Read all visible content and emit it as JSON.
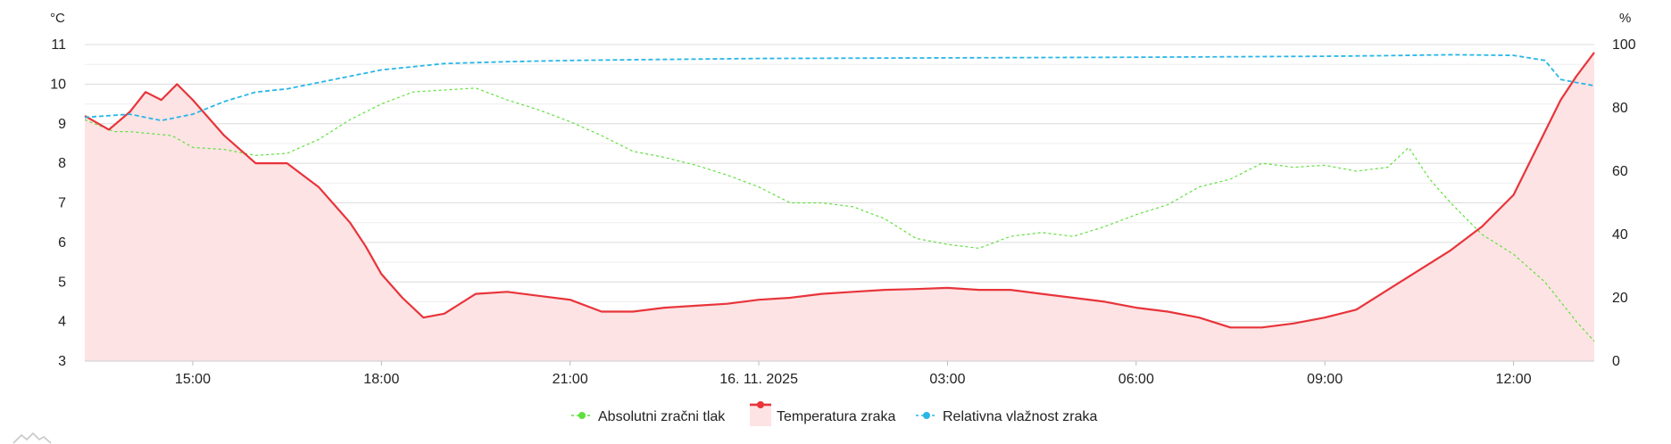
{
  "chart_data": {
    "type": "line",
    "title": "",
    "y_left_unit": "°C",
    "y_right_unit": "%",
    "y_left_range": [
      3,
      11
    ],
    "y_right_range": [
      0,
      100
    ],
    "y_left_ticks": [
      "3",
      "4",
      "5",
      "6",
      "7",
      "8",
      "9",
      "10",
      "11"
    ],
    "y_right_ticks": [
      "0",
      "20",
      "40",
      "60",
      "80",
      "100"
    ],
    "x_start": "2025-11-15 13:17",
    "x_end": "2025-11-16 13:17",
    "x_ticks": [
      "15:00",
      "18:00",
      "21:00",
      "16. 11. 2025",
      "03:00",
      "06:00",
      "09:00",
      "12:00"
    ],
    "grid": true,
    "legend_position": "bottom-center",
    "series": [
      {
        "name": "Absolutni zračni tlak",
        "color": "#5ee03c",
        "style": "dashed",
        "axis": "left",
        "x": [
          "15.11. 13:17",
          "13:45",
          "14:00",
          "14:40",
          "15:00",
          "15:30",
          "16:00",
          "16:30",
          "17:00",
          "17:30",
          "18:00",
          "18:30",
          "19:00",
          "19:30",
          "20:00",
          "20:30",
          "21:00",
          "21:30",
          "22:00",
          "22:30",
          "23:00",
          "23:30",
          "00:00",
          "00:30",
          "01:00",
          "01:30",
          "02:00",
          "02:30",
          "03:00",
          "03:30",
          "04:00",
          "04:30",
          "05:00",
          "05:30",
          "06:00",
          "06:30",
          "07:00",
          "07:30",
          "08:00",
          "08:30",
          "09:00",
          "09:30",
          "10:00",
          "10:20",
          "10:40",
          "11:00",
          "11:30",
          "12:00",
          "12:30",
          "13:00",
          "16.11. 13:17"
        ],
        "values": [
          9.1,
          8.8,
          8.8,
          8.7,
          8.4,
          8.35,
          8.2,
          8.25,
          8.6,
          9.1,
          9.5,
          9.8,
          9.85,
          9.9,
          9.6,
          9.35,
          9.05,
          8.7,
          8.3,
          8.15,
          7.95,
          7.7,
          7.4,
          7.0,
          7.0,
          6.9,
          6.6,
          6.1,
          5.95,
          5.85,
          6.15,
          6.25,
          6.15,
          6.4,
          6.7,
          6.95,
          7.4,
          7.6,
          8.0,
          7.9,
          7.95,
          7.8,
          7.9,
          8.4,
          7.6,
          7.0,
          6.2,
          5.7,
          5.0,
          4.0,
          3.5
        ]
      },
      {
        "name": "Temperatura zraka",
        "color": "#e8343a",
        "style": "solid-area",
        "axis": "left",
        "x": [
          "15.11. 13:17",
          "13:40",
          "14:00",
          "14:15",
          "14:30",
          "14:45",
          "15:00",
          "15:30",
          "16:00",
          "16:30",
          "17:00",
          "17:30",
          "17:45",
          "18:00",
          "18:20",
          "18:40",
          "19:00",
          "19:30",
          "20:00",
          "20:30",
          "21:00",
          "21:30",
          "22:00",
          "22:30",
          "23:00",
          "23:30",
          "00:00",
          "00:30",
          "01:00",
          "01:30",
          "02:00",
          "02:30",
          "03:00",
          "03:30",
          "04:00",
          "04:30",
          "05:00",
          "05:30",
          "06:00",
          "06:30",
          "07:00",
          "07:30",
          "08:00",
          "08:30",
          "09:00",
          "09:30",
          "10:00",
          "10:30",
          "11:00",
          "11:30",
          "12:00",
          "12:15",
          "12:30",
          "12:45",
          "13:00",
          "16.11. 13:17"
        ],
        "values": [
          9.2,
          8.85,
          9.3,
          9.8,
          9.6,
          10.0,
          9.6,
          8.7,
          8.0,
          8.0,
          7.4,
          6.5,
          5.9,
          5.2,
          4.6,
          4.1,
          4.2,
          4.7,
          4.75,
          4.65,
          4.55,
          4.25,
          4.25,
          4.35,
          4.4,
          4.45,
          4.55,
          4.6,
          4.7,
          4.75,
          4.8,
          4.82,
          4.85,
          4.8,
          4.8,
          4.7,
          4.6,
          4.5,
          4.35,
          4.25,
          4.1,
          3.85,
          3.85,
          3.95,
          4.1,
          4.3,
          4.8,
          5.3,
          5.8,
          6.4,
          7.2,
          8.0,
          8.8,
          9.6,
          10.2,
          10.8
        ]
      },
      {
        "name": "Relativna vlažnost zraka",
        "color": "#29b6e6",
        "style": "dashed",
        "axis": "right",
        "x": [
          "15.11. 13:17",
          "14:00",
          "14:30",
          "15:00",
          "15:30",
          "16:00",
          "16:30",
          "17:00",
          "17:30",
          "18:00",
          "18:30",
          "19:00",
          "20:00",
          "21:00",
          "22:00",
          "00:00",
          "03:00",
          "06:00",
          "09:00",
          "10:00",
          "11:00",
          "12:00",
          "12:30",
          "12:45",
          "13:00",
          "16.11. 13:17"
        ],
        "values": [
          77,
          78,
          76,
          78,
          82,
          85,
          86,
          88,
          90,
          92,
          93,
          94,
          94.6,
          95,
          95.2,
          95.6,
          95.8,
          96,
          96.3,
          96.5,
          96.8,
          96.6,
          95,
          89,
          88,
          87
        ]
      }
    ]
  }
}
